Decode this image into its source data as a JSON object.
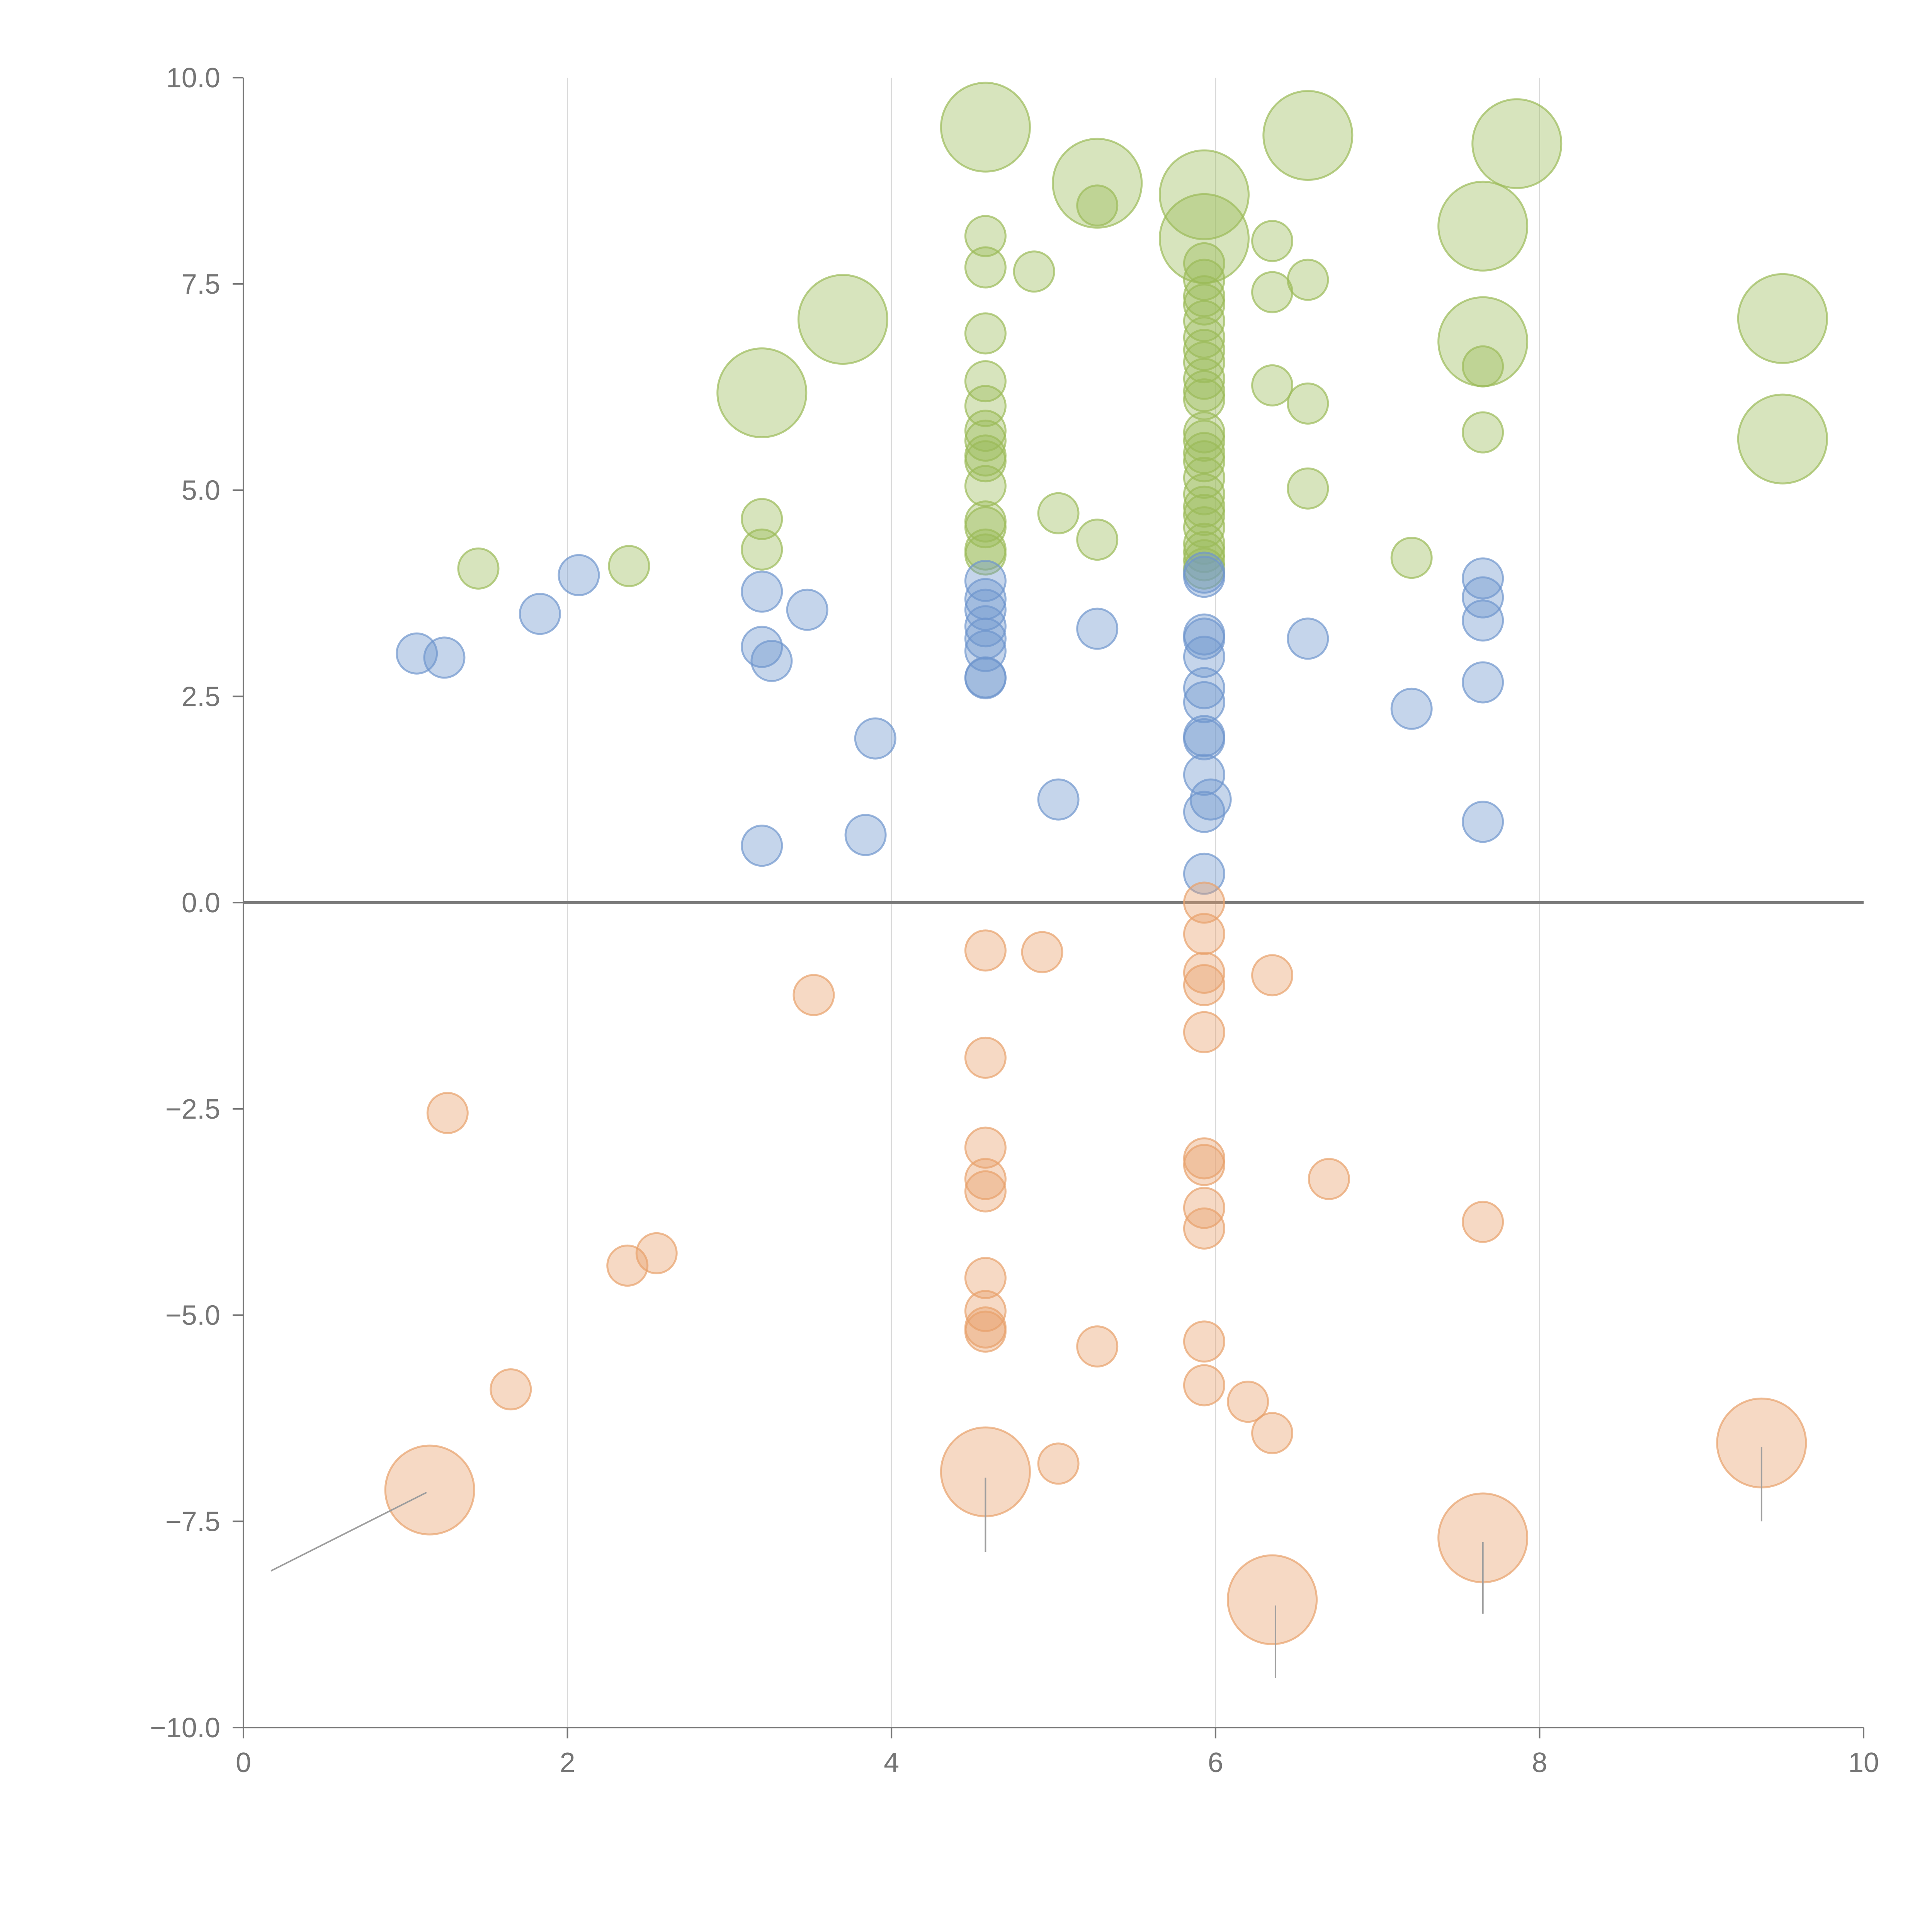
{
  "chart_data": {
    "type": "scatter",
    "title": "",
    "xlabel": "",
    "ylabel": "",
    "xlim": [
      0,
      10
    ],
    "ylim": [
      -10,
      10
    ],
    "x_ticks": [
      0,
      2,
      4,
      6,
      8,
      10
    ],
    "x_tick_labels": [
      "0",
      "2",
      "4",
      "6",
      "8",
      "10"
    ],
    "y_ticks": [
      10,
      7.5,
      5,
      2.5,
      0,
      -2.5,
      -5,
      -7.5,
      -10
    ],
    "y_tick_labels": [
      "10.0",
      "7.5",
      "5.0",
      "2.5",
      "0.0",
      "−2.5",
      "−5.0",
      "−7.5",
      "−10.0"
    ],
    "grid": "vertical lines at x ticks",
    "reference_line_y": 0,
    "series": [
      {
        "name": "green",
        "color": "#9bbb59",
        "points": [
          {
            "x": 1.45,
            "y": 4.05,
            "s": 1
          },
          {
            "x": 2.38,
            "y": 4.08,
            "s": 1
          },
          {
            "x": 3.2,
            "y": 4.65,
            "s": 1
          },
          {
            "x": 3.2,
            "y": 4.28,
            "s": 1
          },
          {
            "x": 3.2,
            "y": 6.18,
            "s": 3
          },
          {
            "x": 3.7,
            "y": 7.07,
            "s": 3
          },
          {
            "x": 4.58,
            "y": 9.4,
            "s": 3
          },
          {
            "x": 4.58,
            "y": 8.08,
            "s": 1
          },
          {
            "x": 4.58,
            "y": 7.7,
            "s": 1
          },
          {
            "x": 4.58,
            "y": 6.9,
            "s": 1
          },
          {
            "x": 4.58,
            "y": 6.32,
            "s": 1
          },
          {
            "x": 4.58,
            "y": 6.02,
            "s": 1
          },
          {
            "x": 4.58,
            "y": 5.72,
            "s": 1
          },
          {
            "x": 4.58,
            "y": 5.6,
            "s": 1
          },
          {
            "x": 4.58,
            "y": 5.42,
            "s": 1
          },
          {
            "x": 4.58,
            "y": 5.35,
            "s": 1
          },
          {
            "x": 4.58,
            "y": 5.05,
            "s": 1
          },
          {
            "x": 4.58,
            "y": 4.62,
            "s": 1
          },
          {
            "x": 4.58,
            "y": 4.55,
            "s": 1
          },
          {
            "x": 4.58,
            "y": 4.28,
            "s": 1
          },
          {
            "x": 4.58,
            "y": 4.22,
            "s": 1
          },
          {
            "x": 4.88,
            "y": 7.65,
            "s": 1
          },
          {
            "x": 5.03,
            "y": 4.72,
            "s": 1
          },
          {
            "x": 5.27,
            "y": 8.72,
            "s": 3
          },
          {
            "x": 5.27,
            "y": 8.45,
            "s": 1
          },
          {
            "x": 5.27,
            "y": 4.4,
            "s": 1
          },
          {
            "x": 5.93,
            "y": 8.58,
            "s": 3
          },
          {
            "x": 5.93,
            "y": 8.05,
            "s": 3
          },
          {
            "x": 5.93,
            "y": 7.75,
            "s": 1
          },
          {
            "x": 5.93,
            "y": 7.55,
            "s": 1
          },
          {
            "x": 5.93,
            "y": 7.35,
            "s": 1
          },
          {
            "x": 5.93,
            "y": 7.25,
            "s": 1
          },
          {
            "x": 5.93,
            "y": 7.05,
            "s": 1
          },
          {
            "x": 5.93,
            "y": 6.85,
            "s": 1
          },
          {
            "x": 5.93,
            "y": 6.7,
            "s": 1
          },
          {
            "x": 5.93,
            "y": 6.55,
            "s": 1
          },
          {
            "x": 5.93,
            "y": 6.35,
            "s": 1
          },
          {
            "x": 5.93,
            "y": 6.2,
            "s": 1
          },
          {
            "x": 5.93,
            "y": 6.1,
            "s": 1
          },
          {
            "x": 5.93,
            "y": 5.7,
            "s": 1
          },
          {
            "x": 5.93,
            "y": 5.6,
            "s": 1
          },
          {
            "x": 5.93,
            "y": 5.45,
            "s": 1
          },
          {
            "x": 5.93,
            "y": 5.35,
            "s": 1
          },
          {
            "x": 5.93,
            "y": 5.15,
            "s": 1
          },
          {
            "x": 5.93,
            "y": 4.95,
            "s": 1
          },
          {
            "x": 5.93,
            "y": 4.8,
            "s": 1
          },
          {
            "x": 5.93,
            "y": 4.7,
            "s": 1
          },
          {
            "x": 5.93,
            "y": 4.55,
            "s": 1
          },
          {
            "x": 5.93,
            "y": 4.35,
            "s": 1
          },
          {
            "x": 5.93,
            "y": 4.25,
            "s": 1
          },
          {
            "x": 5.93,
            "y": 4.15,
            "s": 1
          },
          {
            "x": 5.93,
            "y": 4.05,
            "s": 1
          },
          {
            "x": 6.35,
            "y": 8.02,
            "s": 1
          },
          {
            "x": 6.35,
            "y": 7.4,
            "s": 1
          },
          {
            "x": 6.35,
            "y": 6.27,
            "s": 1
          },
          {
            "x": 6.57,
            "y": 9.3,
            "s": 3
          },
          {
            "x": 6.57,
            "y": 7.55,
            "s": 1
          },
          {
            "x": 6.57,
            "y": 6.05,
            "s": 1
          },
          {
            "x": 6.57,
            "y": 5.02,
            "s": 1
          },
          {
            "x": 7.21,
            "y": 4.18,
            "s": 1
          },
          {
            "x": 7.65,
            "y": 8.2,
            "s": 3
          },
          {
            "x": 7.65,
            "y": 6.8,
            "s": 3
          },
          {
            "x": 7.65,
            "y": 6.5,
            "s": 1
          },
          {
            "x": 7.65,
            "y": 5.7,
            "s": 1
          },
          {
            "x": 7.86,
            "y": 9.2,
            "s": 3
          },
          {
            "x": 9.5,
            "y": 7.08,
            "s": 3
          },
          {
            "x": 9.5,
            "y": 5.62,
            "s": 3
          }
        ]
      },
      {
        "name": "blue",
        "color": "#6f95cd",
        "points": [
          {
            "x": 1.07,
            "y": 3.02,
            "s": 1
          },
          {
            "x": 1.24,
            "y": 2.97,
            "s": 1
          },
          {
            "x": 1.83,
            "y": 3.5,
            "s": 1
          },
          {
            "x": 2.07,
            "y": 3.97,
            "s": 1
          },
          {
            "x": 3.2,
            "y": 3.77,
            "s": 1
          },
          {
            "x": 3.2,
            "y": 3.1,
            "s": 1
          },
          {
            "x": 3.26,
            "y": 2.93,
            "s": 1
          },
          {
            "x": 3.2,
            "y": 0.69,
            "s": 1
          },
          {
            "x": 3.48,
            "y": 3.55,
            "s": 1
          },
          {
            "x": 3.84,
            "y": 0.82,
            "s": 1
          },
          {
            "x": 3.9,
            "y": 1.99,
            "s": 1
          },
          {
            "x": 4.58,
            "y": 3.9,
            "s": 1
          },
          {
            "x": 4.58,
            "y": 3.68,
            "s": 1
          },
          {
            "x": 4.58,
            "y": 3.55,
            "s": 1
          },
          {
            "x": 4.58,
            "y": 3.35,
            "s": 1
          },
          {
            "x": 4.58,
            "y": 3.2,
            "s": 1
          },
          {
            "x": 4.58,
            "y": 3.05,
            "s": 1
          },
          {
            "x": 4.58,
            "y": 2.73,
            "s": 1
          },
          {
            "x": 4.58,
            "y": 2.72,
            "s": 1
          },
          {
            "x": 5.03,
            "y": 1.25,
            "s": 1
          },
          {
            "x": 5.27,
            "y": 3.32,
            "s": 1
          },
          {
            "x": 5.93,
            "y": 4.0,
            "s": 1
          },
          {
            "x": 5.93,
            "y": 3.95,
            "s": 1
          },
          {
            "x": 5.93,
            "y": 3.25,
            "s": 1
          },
          {
            "x": 5.93,
            "y": 3.2,
            "s": 1
          },
          {
            "x": 5.93,
            "y": 2.98,
            "s": 1
          },
          {
            "x": 5.93,
            "y": 2.6,
            "s": 1
          },
          {
            "x": 5.93,
            "y": 2.43,
            "s": 1
          },
          {
            "x": 5.93,
            "y": 2.02,
            "s": 1
          },
          {
            "x": 5.93,
            "y": 1.98,
            "s": 1
          },
          {
            "x": 5.93,
            "y": 1.55,
            "s": 1
          },
          {
            "x": 5.97,
            "y": 1.25,
            "s": 1
          },
          {
            "x": 5.93,
            "y": 1.1,
            "s": 1
          },
          {
            "x": 5.93,
            "y": 0.35,
            "s": 1
          },
          {
            "x": 6.57,
            "y": 3.2,
            "s": 1
          },
          {
            "x": 7.21,
            "y": 2.35,
            "s": 1
          },
          {
            "x": 7.65,
            "y": 3.93,
            "s": 1
          },
          {
            "x": 7.65,
            "y": 3.7,
            "s": 1
          },
          {
            "x": 7.65,
            "y": 3.42,
            "s": 1
          },
          {
            "x": 7.65,
            "y": 2.67,
            "s": 1
          },
          {
            "x": 7.65,
            "y": 0.98,
            "s": 1
          }
        ]
      },
      {
        "name": "orange",
        "color": "#e8a16b",
        "points": [
          {
            "x": 1.15,
            "y": -7.12,
            "s": 3
          },
          {
            "x": 1.26,
            "y": -2.55,
            "s": 1
          },
          {
            "x": 1.65,
            "y": -5.9,
            "s": 1
          },
          {
            "x": 2.37,
            "y": -4.4,
            "s": 1
          },
          {
            "x": 2.55,
            "y": -4.25,
            "s": 1
          },
          {
            "x": 3.52,
            "y": -1.12,
            "s": 1
          },
          {
            "x": 4.58,
            "y": -0.58,
            "s": 1
          },
          {
            "x": 4.58,
            "y": -1.88,
            "s": 1
          },
          {
            "x": 4.58,
            "y": -2.97,
            "s": 1
          },
          {
            "x": 4.58,
            "y": -3.35,
            "s": 1
          },
          {
            "x": 4.58,
            "y": -3.5,
            "s": 1
          },
          {
            "x": 4.58,
            "y": -4.55,
            "s": 1
          },
          {
            "x": 4.58,
            "y": -4.95,
            "s": 1
          },
          {
            "x": 4.58,
            "y": -5.15,
            "s": 1
          },
          {
            "x": 4.58,
            "y": -5.2,
            "s": 1
          },
          {
            "x": 4.58,
            "y": -6.9,
            "s": 3
          },
          {
            "x": 4.93,
            "y": -0.6,
            "s": 1
          },
          {
            "x": 5.03,
            "y": -6.8,
            "s": 1
          },
          {
            "x": 5.27,
            "y": -5.38,
            "s": 1
          },
          {
            "x": 5.93,
            "y": 0.0,
            "s": 1
          },
          {
            "x": 5.93,
            "y": -0.38,
            "s": 1
          },
          {
            "x": 5.93,
            "y": -0.85,
            "s": 1
          },
          {
            "x": 5.93,
            "y": -1.0,
            "s": 1
          },
          {
            "x": 5.93,
            "y": -1.57,
            "s": 1
          },
          {
            "x": 5.93,
            "y": -3.1,
            "s": 1
          },
          {
            "x": 5.93,
            "y": -3.18,
            "s": 1
          },
          {
            "x": 5.93,
            "y": -3.7,
            "s": 1
          },
          {
            "x": 5.93,
            "y": -3.95,
            "s": 1
          },
          {
            "x": 5.93,
            "y": -5.32,
            "s": 1
          },
          {
            "x": 5.93,
            "y": -5.85,
            "s": 1
          },
          {
            "x": 6.2,
            "y": -6.05,
            "s": 1
          },
          {
            "x": 6.35,
            "y": -0.88,
            "s": 1
          },
          {
            "x": 6.35,
            "y": -6.43,
            "s": 1
          },
          {
            "x": 6.35,
            "y": -8.45,
            "s": 3
          },
          {
            "x": 6.7,
            "y": -3.35,
            "s": 1
          },
          {
            "x": 7.65,
            "y": -3.87,
            "s": 1
          },
          {
            "x": 7.65,
            "y": -7.7,
            "s": 3
          },
          {
            "x": 9.37,
            "y": -6.55,
            "s": 3
          }
        ]
      }
    ],
    "leader_lines": [
      {
        "from": [
          1.13,
          -7.15
        ],
        "to": [
          0.17,
          -8.1
        ]
      },
      {
        "from": [
          4.58,
          -6.97
        ],
        "to": [
          4.58,
          -7.87
        ]
      },
      {
        "from": [
          6.37,
          -8.52
        ],
        "to": [
          6.37,
          -9.4
        ]
      },
      {
        "from": [
          7.65,
          -7.75
        ],
        "to": [
          7.65,
          -8.62
        ]
      },
      {
        "from": [
          9.37,
          -6.6
        ],
        "to": [
          9.37,
          -7.5
        ]
      }
    ]
  }
}
